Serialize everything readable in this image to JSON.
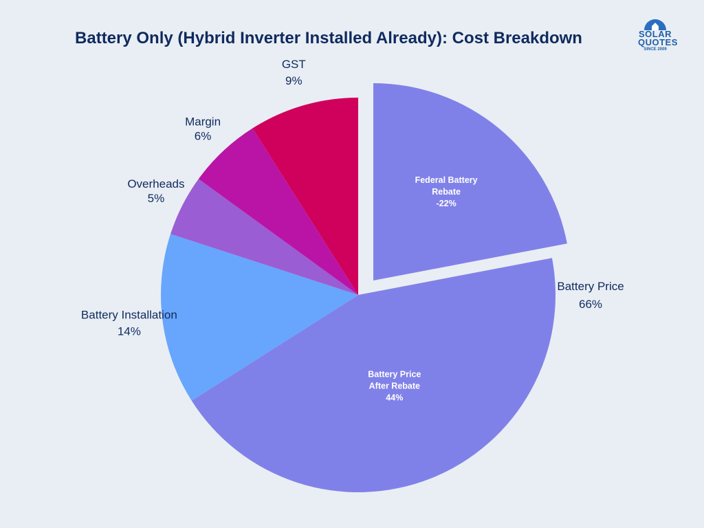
{
  "title": "Battery Only (Hybrid Inverter Installed Already): Cost Breakdown",
  "logo": {
    "line1": "SOLAR",
    "line2": "QUOTES",
    "line3": "SINCE 2009",
    "icon": "sun-house-icon"
  },
  "chart_data": {
    "type": "pie",
    "title": "Battery Only (Hybrid Inverter Installed Already): Cost Breakdown",
    "unit": "%",
    "slices": [
      {
        "label": "Battery Installation",
        "value": 14,
        "value_label": "14%",
        "color": "#67a6fc"
      },
      {
        "label": "Overheads",
        "value": 5,
        "value_label": "5%",
        "color": "#9b5dd3"
      },
      {
        "label": "Margin",
        "value": 6,
        "value_label": "6%",
        "color": "#b914a6"
      },
      {
        "label": "GST",
        "value": 9,
        "value_label": "9%",
        "color": "#d0015c"
      },
      {
        "label": "Battery Price",
        "value": 66,
        "value_label": "66%",
        "color": "#8081e8",
        "sub_slices": [
          {
            "label_lines": [
              "Federal Battery",
              "Rebate",
              "-22%"
            ],
            "value": 22,
            "exploded": true
          },
          {
            "label_lines": [
              "Battery Price",
              "After Rebate",
              "44%"
            ],
            "value": 44,
            "exploded": false
          }
        ]
      }
    ]
  }
}
